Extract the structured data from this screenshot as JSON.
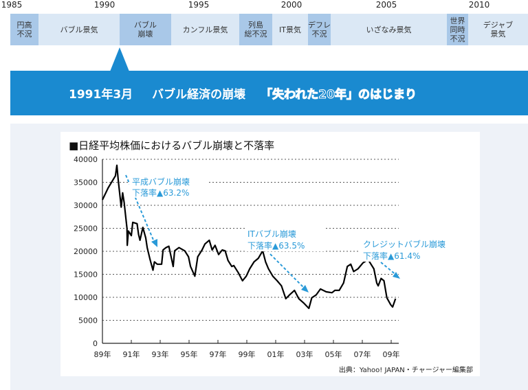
{
  "timeline": {
    "years": [
      "1985",
      "1990",
      "1995",
      "2000",
      "2005",
      "2010"
    ],
    "periods": [
      {
        "label": "円高\n不況",
        "tone": "dark"
      },
      {
        "label": "バブル景気",
        "tone": "light"
      },
      {
        "label": "バブル\n崩壊",
        "tone": "dark"
      },
      {
        "label": "カンフル景気",
        "tone": "light"
      },
      {
        "label": "列島\n総不況",
        "tone": "dark"
      },
      {
        "label": "IT景気",
        "tone": "light"
      },
      {
        "label": "デフレ\n不況",
        "tone": "dark"
      },
      {
        "label": "いざなみ景気",
        "tone": "light"
      },
      {
        "label": "世界\n同時\n不況",
        "tone": "dark"
      },
      {
        "label": "デジャブ\n景気",
        "tone": "light"
      }
    ]
  },
  "banner": {
    "date": "1991年3月",
    "event": "バブル経済の崩壊",
    "highlight": "「失われた20年」",
    "suffix": "のはじまり"
  },
  "colors": {
    "accent": "#1a8ad0",
    "annotation": "#2a9ad8",
    "line": "#000000"
  },
  "chart_data": {
    "type": "line",
    "title": "■日経平均株価におけるバブル崩壊と不落率",
    "xlabel": "",
    "ylabel": "",
    "xlim": [
      1989,
      2009.4
    ],
    "ylim": [
      0,
      40000
    ],
    "yticks": [
      "0",
      "5000",
      "10000",
      "15000",
      "20000",
      "25000",
      "30000",
      "35000",
      "40000"
    ],
    "xticks": [
      "89年",
      "91年",
      "93年",
      "95年",
      "97年",
      "99年",
      "01年",
      "03年",
      "05年",
      "07年",
      "09年"
    ],
    "grid": "horizontal dotted",
    "series": [
      {
        "name": "日経平均株価",
        "x": [
          1989.0,
          1989.4,
          1989.9,
          1990.0,
          1990.1,
          1990.3,
          1990.4,
          1990.5,
          1990.7,
          1990.72,
          1990.8,
          1991.0,
          1991.1,
          1991.4,
          1991.5,
          1991.6,
          1991.8,
          1992.0,
          1992.1,
          1992.3,
          1992.5,
          1992.6,
          1992.8,
          1993.1,
          1993.2,
          1993.4,
          1993.6,
          1993.9,
          1994.0,
          1994.3,
          1994.7,
          1994.96,
          1995.1,
          1995.4,
          1995.6,
          1995.9,
          1996.1,
          1996.4,
          1996.6,
          1996.8,
          1997.05,
          1997.3,
          1997.5,
          1997.7,
          1997.96,
          1998.1,
          1998.4,
          1998.7,
          1998.96,
          1999.2,
          1999.5,
          1999.8,
          2000.1,
          2000.3,
          2000.5,
          2000.8,
          2001.1,
          2001.4,
          2001.7,
          2001.95,
          2002.3,
          2002.6,
          2002.96,
          2003.3,
          2003.5,
          2003.8,
          2004.1,
          2004.5,
          2004.9,
          2005.1,
          2005.4,
          2005.7,
          2005.96,
          2006.2,
          2006.4,
          2006.7,
          2007.05,
          2007.4,
          2007.6,
          2007.8,
          2008.0,
          2008.1,
          2008.3,
          2008.5,
          2008.7,
          2008.96,
          2009.1,
          2009.3
        ],
        "y": [
          31200,
          33800,
          36400,
          38700,
          35300,
          29600,
          32700,
          30700,
          25000,
          21300,
          24400,
          23400,
          26300,
          26000,
          23700,
          22400,
          25200,
          22900,
          20800,
          18200,
          15900,
          17700,
          17200,
          17200,
          20300,
          20800,
          21100,
          16700,
          20100,
          20800,
          20100,
          18800,
          16700,
          14600,
          18800,
          20300,
          21600,
          22400,
          20300,
          21300,
          19300,
          20300,
          20100,
          18000,
          16700,
          16900,
          15400,
          13600,
          14600,
          16200,
          17700,
          18500,
          20100,
          17700,
          16200,
          14600,
          13600,
          12500,
          9700,
          10500,
          11500,
          9700,
          8700,
          7600,
          9900,
          10500,
          11800,
          11200,
          11000,
          11500,
          11500,
          13100,
          16700,
          17200,
          15600,
          16200,
          17500,
          18200,
          17200,
          16200,
          13100,
          12500,
          14100,
          13600,
          9900,
          8400,
          7900,
          9700
        ]
      }
    ],
    "annotations": [
      {
        "title": "平成バブル崩壊",
        "rate": "下落率▲63.2%"
      },
      {
        "title": "ITバブル崩壊",
        "rate": "下落率▲63.5%"
      },
      {
        "title": "クレジットバブル崩壊",
        "rate": "下落率▲61.4%"
      }
    ],
    "source": "出典：Yahoo! JAPAN・チャージャー編集部"
  }
}
